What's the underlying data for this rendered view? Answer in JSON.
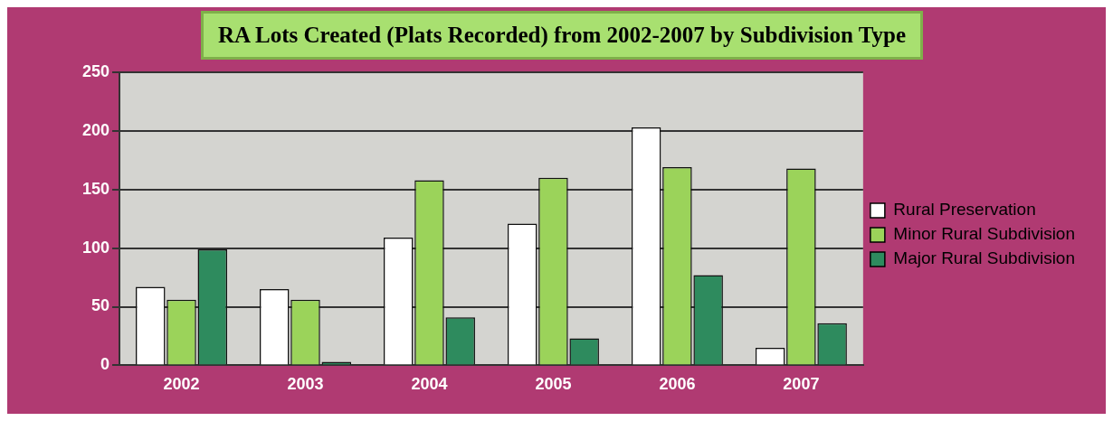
{
  "chart_data": {
    "type": "bar",
    "title": "RA Lots Created (Plats Recorded) from 2002-2007 by Subdivision Type",
    "categories": [
      "2002",
      "2003",
      "2004",
      "2005",
      "2006",
      "2007"
    ],
    "series": [
      {
        "name": "Rural Preservation",
        "color": "#ffffff",
        "values": [
          67,
          65,
          109,
          121,
          203,
          15
        ]
      },
      {
        "name": "Minor Rural Subdivision",
        "color": "#9bd35a",
        "values": [
          56,
          56,
          158,
          160,
          169,
          168
        ]
      },
      {
        "name": "Major Rural Subdivision",
        "color": "#2e8b5e",
        "values": [
          99,
          3,
          41,
          23,
          77,
          36
        ]
      }
    ],
    "ylim": [
      0,
      250
    ],
    "yticks": [
      0,
      50,
      100,
      150,
      200,
      250
    ],
    "grid": "y",
    "legend": "right"
  }
}
